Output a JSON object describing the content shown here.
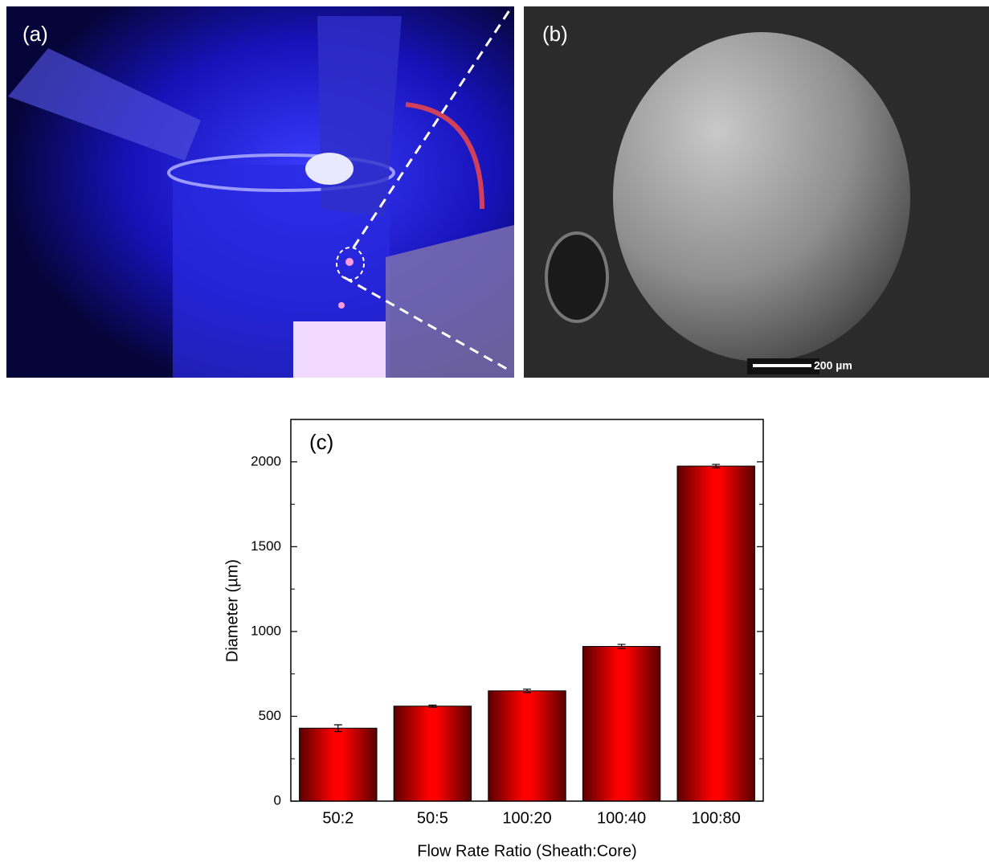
{
  "panels": {
    "a": {
      "label": "(a)"
    },
    "b": {
      "label": "(b)",
      "scale_bar": "200 µm"
    }
  },
  "chart_data": {
    "type": "bar",
    "annotation": "(c)",
    "xlabel": "Flow Rate Ratio (Sheath:Core)",
    "ylabel": "Diameter (µm)",
    "categories": [
      "50:2",
      "50:5",
      "100:20",
      "100:40",
      "100:80"
    ],
    "values": [
      430,
      560,
      650,
      912,
      1975
    ],
    "errors": [
      20,
      6,
      10,
      12,
      10
    ],
    "color": "#ff0000",
    "ylim": [
      0,
      2250
    ],
    "yticks": [
      0,
      500,
      1000,
      1500,
      2000
    ],
    "yminorticks": [
      250,
      750,
      1250,
      1750,
      2250
    ]
  }
}
